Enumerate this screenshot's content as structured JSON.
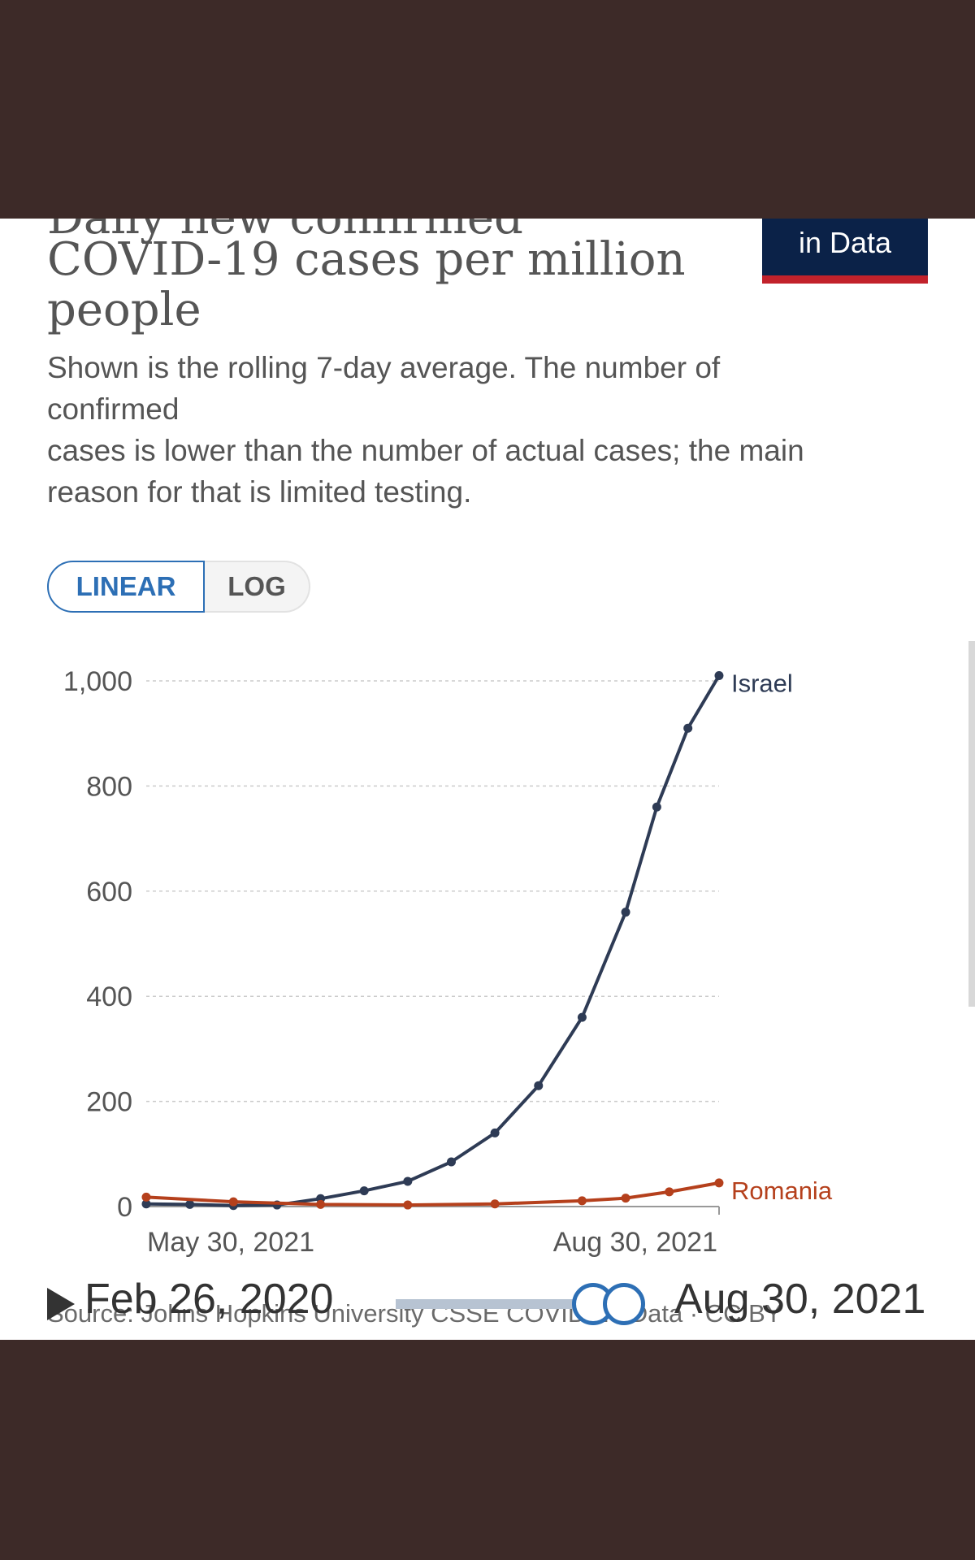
{
  "header": {
    "title_cut": "Daily new confirmed",
    "title_line1": "COVID-19 cases per million",
    "title_line2": "people",
    "logo_text": "in Data"
  },
  "subtitle": {
    "line1": "Shown is the rolling 7-day average. The number of",
    "line2": "confirmed",
    "line3": "cases is lower than the number of actual cases; the main",
    "line4": "reason for that is limited testing."
  },
  "toggle": {
    "linear": "LINEAR",
    "log": "LOG"
  },
  "timeline": {
    "start": "Feb 26, 2020",
    "end": "Aug 30, 2021"
  },
  "source": "Source: Johns Hopkins University CSSE COVID-19 Data · CC BY",
  "colors": {
    "israel": "#2e3b55",
    "romania": "#b5401c",
    "accent": "#2d6fb5"
  },
  "chart_data": {
    "type": "line",
    "title": "Daily new confirmed COVID-19 cases per million people",
    "yticks": [
      0,
      200,
      400,
      600,
      800,
      1000
    ],
    "ytick_labels": [
      "0",
      "200",
      "400",
      "600",
      "800",
      "1,000"
    ],
    "ylim": [
      0,
      1000
    ],
    "xlim": [
      "2021-05-30",
      "2021-08-30"
    ],
    "xtick_labels": [
      "May 30, 2021",
      "Aug 30, 2021"
    ],
    "grid": true,
    "series": [
      {
        "name": "Israel",
        "x": [
          "2021-05-30",
          "2021-06-06",
          "2021-06-13",
          "2021-06-20",
          "2021-06-27",
          "2021-07-04",
          "2021-07-11",
          "2021-07-18",
          "2021-07-25",
          "2021-08-01",
          "2021-08-08",
          "2021-08-15",
          "2021-08-20",
          "2021-08-25",
          "2021-08-30"
        ],
        "y": [
          5,
          4,
          2,
          3,
          15,
          30,
          48,
          85,
          140,
          230,
          360,
          560,
          760,
          910,
          1010
        ]
      },
      {
        "name": "Romania",
        "x": [
          "2021-05-30",
          "2021-06-13",
          "2021-06-27",
          "2021-07-11",
          "2021-07-25",
          "2021-08-08",
          "2021-08-15",
          "2021-08-22",
          "2021-08-30"
        ],
        "y": [
          18,
          9,
          4,
          3,
          5,
          11,
          16,
          28,
          45
        ]
      }
    ]
  }
}
